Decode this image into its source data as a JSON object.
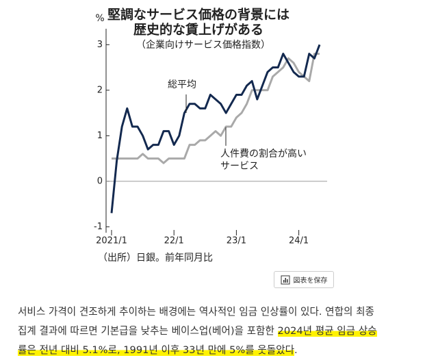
{
  "chart_data": {
    "type": "line",
    "title_lines": [
      "堅調なサービス価格の背景には",
      "歴史的な賃上げがある"
    ],
    "subtitle": "（企業向けサービス価格指数）",
    "y_unit": "%",
    "source": "（出所）日銀。前年同月比",
    "categories": [
      "2021/1",
      null,
      null,
      null,
      null,
      null,
      null,
      null,
      null,
      null,
      null,
      null,
      "22/1",
      null,
      null,
      null,
      null,
      null,
      null,
      null,
      null,
      null,
      null,
      null,
      "23/1",
      null,
      null,
      null,
      null,
      null,
      null,
      null,
      null,
      null,
      null,
      null,
      "24/1",
      null,
      null,
      null,
      null
    ],
    "series": [
      {
        "name": "総平均",
        "color": "#13294f",
        "values": [
          -0.7,
          0.45,
          1.2,
          1.6,
          1.2,
          1.2,
          1.0,
          0.7,
          0.8,
          0.8,
          1.1,
          1.1,
          0.8,
          1.0,
          1.5,
          1.7,
          1.7,
          1.6,
          1.6,
          1.9,
          1.8,
          1.7,
          1.5,
          1.7,
          1.9,
          1.9,
          2.1,
          2.2,
          1.8,
          2.1,
          2.4,
          2.5,
          2.5,
          2.8,
          2.6,
          2.4,
          2.3,
          2.3,
          2.8,
          2.7,
          3.0
        ]
      },
      {
        "color": "#a9a9a9",
        "values": [
          0.5,
          0.5,
          0.5,
          0.5,
          0.5,
          0.5,
          0.6,
          0.5,
          0.5,
          0.5,
          0.4,
          0.5,
          0.5,
          0.5,
          0.5,
          0.8,
          0.8,
          0.9,
          0.9,
          1.0,
          1.1,
          1.0,
          1.2,
          1.2,
          1.4,
          1.5,
          1.7,
          2.0,
          2.0,
          2.0,
          2.0,
          2.3,
          2.4,
          2.5,
          2.7,
          2.6,
          2.4,
          2.3,
          2.2,
          2.8,
          2.8
        ]
      }
    ],
    "annotations": [
      {
        "lines": [
          "人件費の割合が高い",
          "サービス"
        ]
      }
    ],
    "ylim": [
      -1.13,
      3.35
    ],
    "yticks": [
      -1,
      0,
      1,
      2,
      3
    ]
  },
  "button": {
    "label": "図表を保存"
  },
  "article": {
    "lines": [
      [
        "서비스 가격이 견조하게 추이하는 배경에는 역사적인 임금 인상률이 있다. 연합의 최종"
      ],
      [
        "집계 결과에 따르면 기본급을 낮추는 베이스업(베어)을 포함한 ",
        "2024년 평균 임금 상승"
      ],
      [
        "률은 전년 대비 5.1%로, 1991년 이후 33년 만에 5%를 웃돌았다",
        "."
      ]
    ]
  }
}
